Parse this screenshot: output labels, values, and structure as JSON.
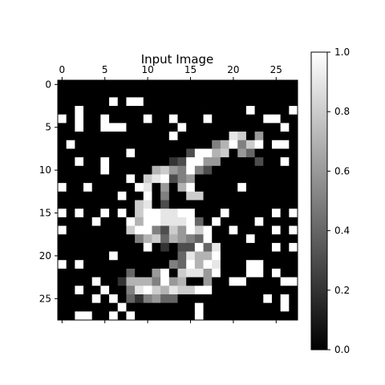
{
  "chart_data": {
    "type": "heatmap",
    "title": "Input Image",
    "colormap": "gray",
    "xlabel": "",
    "ylabel": "",
    "x_ticks": [
      0,
      5,
      10,
      15,
      20,
      25
    ],
    "y_ticks": [
      0,
      5,
      10,
      15,
      20,
      25
    ],
    "colorbar": {
      "range": [
        0.0,
        1.0
      ],
      "ticks": [
        "0.0",
        "0.2",
        "0.4",
        "0.6",
        "0.8",
        "1.0"
      ]
    },
    "values": [
      [
        0,
        0,
        0,
        0,
        0,
        0,
        0,
        0,
        0,
        0,
        0,
        0,
        0,
        0,
        0,
        0,
        0,
        0,
        0,
        0,
        0,
        0,
        0,
        0,
        0,
        0,
        0,
        0
      ],
      [
        0,
        0,
        0,
        0,
        0,
        0,
        0,
        0,
        0,
        0,
        0,
        0,
        0,
        0,
        0,
        0,
        0,
        0,
        0,
        0,
        0,
        0,
        0,
        0,
        0,
        0,
        0,
        0
      ],
      [
        0,
        0,
        0,
        0,
        0,
        0,
        1,
        0,
        1,
        1,
        0,
        0,
        0,
        0,
        0,
        0,
        0,
        0,
        0,
        0,
        0,
        0,
        0,
        0,
        0,
        0,
        0,
        0
      ],
      [
        0,
        0,
        1,
        0,
        0,
        0,
        0,
        0,
        0,
        0,
        0,
        0,
        0,
        0,
        0,
        0,
        0,
        0,
        0,
        0,
        0,
        0,
        1,
        0,
        0,
        0,
        0,
        1
      ],
      [
        1,
        0,
        1,
        0,
        0,
        1,
        0,
        0,
        0,
        0,
        1,
        0,
        0,
        1,
        0,
        0,
        0,
        1,
        0,
        0,
        0,
        0,
        0,
        0,
        1,
        1,
        0,
        0
      ],
      [
        0,
        0,
        1,
        0,
        0,
        1,
        1,
        1,
        0,
        0,
        0,
        0,
        0,
        0,
        1,
        0,
        0,
        0,
        0,
        0,
        0,
        0,
        0,
        0,
        0,
        0,
        1,
        0
      ],
      [
        0,
        0,
        0,
        0,
        0,
        0,
        0,
        0,
        0,
        0,
        0,
        0,
        0,
        1,
        0,
        0,
        0,
        0,
        0,
        0,
        0.9,
        0.8,
        0,
        0.6,
        0,
        0,
        0,
        0
      ],
      [
        0,
        1,
        0,
        0,
        0,
        0,
        0,
        0,
        0,
        0,
        0,
        0,
        0,
        0,
        0,
        0,
        0,
        0,
        0.5,
        0.7,
        1,
        0.5,
        0.8,
        1,
        0,
        1,
        1,
        0
      ],
      [
        0,
        0,
        0,
        0,
        0,
        0,
        0,
        0,
        1,
        0,
        0,
        0,
        0,
        0,
        0,
        0.3,
        1,
        1,
        0.7,
        0.8,
        0,
        0.6,
        0.4,
        0,
        0,
        0,
        0,
        0
      ],
      [
        0,
        0,
        1,
        0,
        0,
        1,
        0,
        0,
        0,
        0,
        0,
        0,
        0,
        0.2,
        0.3,
        1,
        1,
        0.6,
        0.6,
        0,
        0,
        0,
        0,
        0.3,
        0,
        0,
        1,
        0
      ],
      [
        0,
        0,
        0,
        0,
        0,
        1,
        0,
        0,
        0,
        0,
        0,
        0.7,
        0.8,
        0.6,
        0.5,
        1,
        0.5,
        0.3,
        0,
        0,
        0,
        0,
        0,
        0,
        0,
        0,
        0,
        0
      ],
      [
        0,
        0,
        0,
        0,
        0,
        0,
        0,
        0,
        1,
        0,
        0.8,
        0.9,
        1,
        0.3,
        0.5,
        0.6,
        0,
        0,
        0,
        0,
        0,
        0,
        0,
        0,
        0,
        0,
        0,
        0
      ],
      [
        1,
        0,
        0,
        1,
        0,
        0,
        0,
        0,
        0,
        1,
        0.9,
        0,
        0.6,
        0,
        0.7,
        1,
        0,
        0,
        0,
        0,
        0,
        1,
        0,
        0,
        0,
        0,
        0,
        0
      ],
      [
        0,
        0,
        0,
        0,
        0,
        0,
        0,
        1,
        0,
        0,
        1,
        0,
        0.5,
        0,
        0,
        0.8,
        0.8,
        0,
        0,
        0,
        0,
        0,
        0,
        0,
        0,
        0,
        0,
        0
      ],
      [
        0,
        0,
        0,
        0,
        0,
        0,
        0,
        0,
        0,
        0.8,
        0.9,
        0,
        0.3,
        0,
        0,
        0,
        0,
        0,
        0,
        0,
        0,
        0,
        0,
        0,
        0,
        0,
        0,
        0
      ],
      [
        1,
        0,
        1,
        0,
        0,
        1,
        0,
        1,
        0,
        0.8,
        1,
        1,
        0.9,
        0.9,
        1,
        1,
        0,
        0,
        0,
        1,
        0,
        0,
        0,
        0,
        0,
        1,
        0,
        1
      ],
      [
        0,
        0,
        0,
        0,
        1,
        0,
        0,
        0,
        1,
        0.7,
        1,
        1,
        0.9,
        0.9,
        0.9,
        1,
        0.4,
        0,
        1,
        0,
        0,
        0,
        0,
        1,
        0,
        0,
        0,
        0
      ],
      [
        1,
        0,
        0,
        0,
        0,
        0,
        0,
        0,
        0.8,
        1,
        1,
        0.5,
        0.3,
        0.8,
        0.6,
        1,
        0.8,
        1,
        0,
        0,
        1,
        0,
        0,
        0,
        0,
        1,
        0,
        1
      ],
      [
        0,
        0,
        0,
        0,
        0,
        0,
        0,
        0,
        0,
        0.5,
        0.7,
        0.8,
        0.4,
        0.7,
        0.6,
        0.5,
        0.4,
        1,
        0,
        0,
        0,
        0,
        1,
        0,
        0,
        0,
        0,
        0
      ],
      [
        0,
        0,
        0,
        0,
        0,
        0,
        0,
        0,
        0,
        0,
        1,
        0,
        0.2,
        0,
        0.3,
        0.3,
        1,
        0.4,
        0.9,
        0,
        0,
        0,
        0,
        0,
        0,
        1,
        0,
        1
      ],
      [
        0,
        0,
        0,
        0,
        0,
        0,
        1,
        0,
        0,
        0,
        0,
        0,
        0,
        0,
        0.4,
        0.9,
        0.7,
        0.7,
        1,
        0,
        0,
        0,
        0,
        0,
        0,
        0,
        0,
        0
      ],
      [
        1,
        0,
        1,
        0,
        0,
        0,
        0,
        0,
        0,
        0,
        0,
        0,
        0,
        0.5,
        0.4,
        1,
        0.7,
        1,
        0.9,
        0,
        0,
        0,
        1,
        1,
        0,
        0,
        0,
        0
      ],
      [
        0,
        0,
        0,
        0,
        0,
        0,
        0,
        0,
        0.4,
        0,
        0,
        0.6,
        1,
        0,
        0.8,
        0.9,
        0.9,
        0.6,
        1,
        0,
        0,
        0,
        1,
        1,
        0,
        1,
        0,
        0
      ],
      [
        0,
        0,
        0,
        0,
        1,
        0,
        0,
        0.2,
        0.7,
        0.7,
        0.7,
        0.5,
        1,
        0.6,
        0.7,
        0,
        0,
        0.6,
        0,
        0,
        1,
        1,
        0,
        0,
        0,
        0,
        1,
        1
      ],
      [
        0,
        0,
        1,
        0,
        0,
        1,
        0,
        0,
        0.5,
        0.9,
        1,
        0.8,
        0.7,
        0.9,
        0.8,
        0.8,
        1,
        1,
        0,
        0,
        0,
        0,
        0,
        0,
        0,
        0,
        0,
        0
      ],
      [
        0,
        0,
        0,
        0,
        1,
        0,
        1,
        0,
        0.4,
        0.2,
        0.5,
        0.6,
        0.4,
        0.4,
        0,
        0,
        0,
        0,
        0,
        0,
        0,
        0,
        0,
        0,
        1,
        0,
        1,
        0
      ],
      [
        0,
        0,
        0,
        0,
        0,
        0,
        0,
        1,
        0,
        0,
        0,
        0,
        0,
        0,
        0,
        0,
        1,
        0,
        0,
        0,
        0,
        0,
        0,
        0,
        0,
        0,
        1,
        0
      ],
      [
        0,
        0,
        1,
        1,
        0,
        0,
        1,
        0,
        1,
        0,
        0,
        0,
        0,
        0,
        0,
        0,
        1,
        0,
        0,
        0,
        0,
        0,
        0,
        0,
        0,
        0,
        0,
        0
      ]
    ]
  }
}
